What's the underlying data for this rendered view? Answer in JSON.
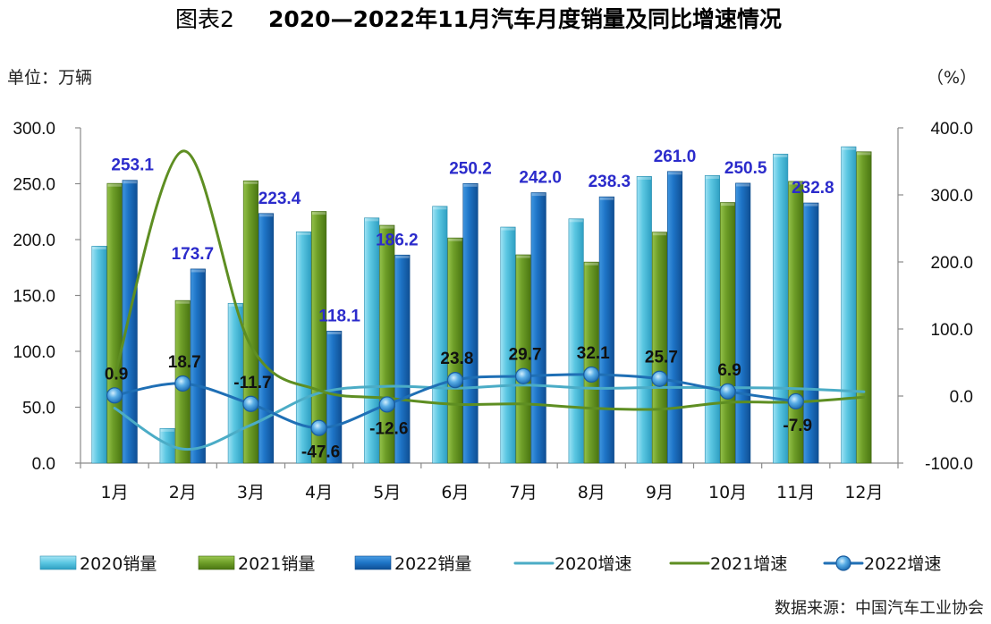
{
  "figure": {
    "label": "图表2",
    "source": "数据来源：中国汽车工业协会"
  },
  "chart_data": {
    "type": "bar",
    "title": "2020—2022年11月汽车月度销量及同比增速情况",
    "categories": [
      "1月",
      "2月",
      "3月",
      "4月",
      "5月",
      "6月",
      "7月",
      "8月",
      "9月",
      "10月",
      "11月",
      "12月"
    ],
    "y_left": {
      "label": "单位：万辆",
      "range": [
        0,
        300
      ],
      "ticks": [
        "0.0",
        "50.0",
        "100.0",
        "150.0",
        "200.0",
        "250.0",
        "300.0"
      ]
    },
    "y_right": {
      "label": "（%）",
      "range": [
        -100,
        400
      ],
      "ticks": [
        "-100.0",
        "0.0",
        "100.0",
        "200.0",
        "300.0",
        "400.0"
      ]
    },
    "grid": false,
    "legend": "bottom",
    "series": [
      {
        "name": "2020销量",
        "type": "bar",
        "axis": "left",
        "color": "#4BC0DD",
        "values": [
          194.1,
          31.0,
          143.0,
          207.0,
          219.4,
          229.8,
          211.2,
          218.6,
          256.5,
          257.3,
          276.5,
          283.1
        ]
      },
      {
        "name": "2021销量",
        "type": "bar",
        "axis": "left",
        "color": "#6B9A25",
        "values": [
          250.3,
          145.5,
          252.6,
          225.2,
          212.8,
          201.5,
          186.4,
          179.9,
          206.7,
          233.2,
          252.1,
          278.6
        ]
      },
      {
        "name": "2022销量",
        "type": "bar",
        "axis": "left",
        "color": "#1B70C4",
        "data_labels": true,
        "values": [
          253.1,
          173.7,
          223.4,
          118.1,
          186.2,
          250.2,
          242.0,
          238.3,
          261.0,
          250.5,
          232.8,
          null
        ]
      },
      {
        "name": "2020增速",
        "type": "line",
        "axis": "right",
        "color": "#4BACC6",
        "values": [
          -18.0,
          -79.1,
          -43.3,
          4.4,
          14.5,
          11.6,
          16.4,
          11.6,
          12.8,
          12.5,
          11.1,
          6.4
        ]
      },
      {
        "name": "2021增速",
        "type": "line",
        "axis": "right",
        "color": "#5E8E22",
        "values": [
          29.5,
          365.3,
          74.9,
          8.6,
          -3.1,
          -12.4,
          -11.9,
          -18.1,
          -19.6,
          -9.4,
          -9.1,
          -1.6
        ]
      },
      {
        "name": "2022增速",
        "type": "line",
        "axis": "right",
        "color": "#1F6FB5",
        "markers": true,
        "data_labels": true,
        "values": [
          0.9,
          18.7,
          -11.7,
          -47.6,
          -12.6,
          23.8,
          29.7,
          32.1,
          25.7,
          6.9,
          -7.9,
          null
        ]
      }
    ]
  }
}
